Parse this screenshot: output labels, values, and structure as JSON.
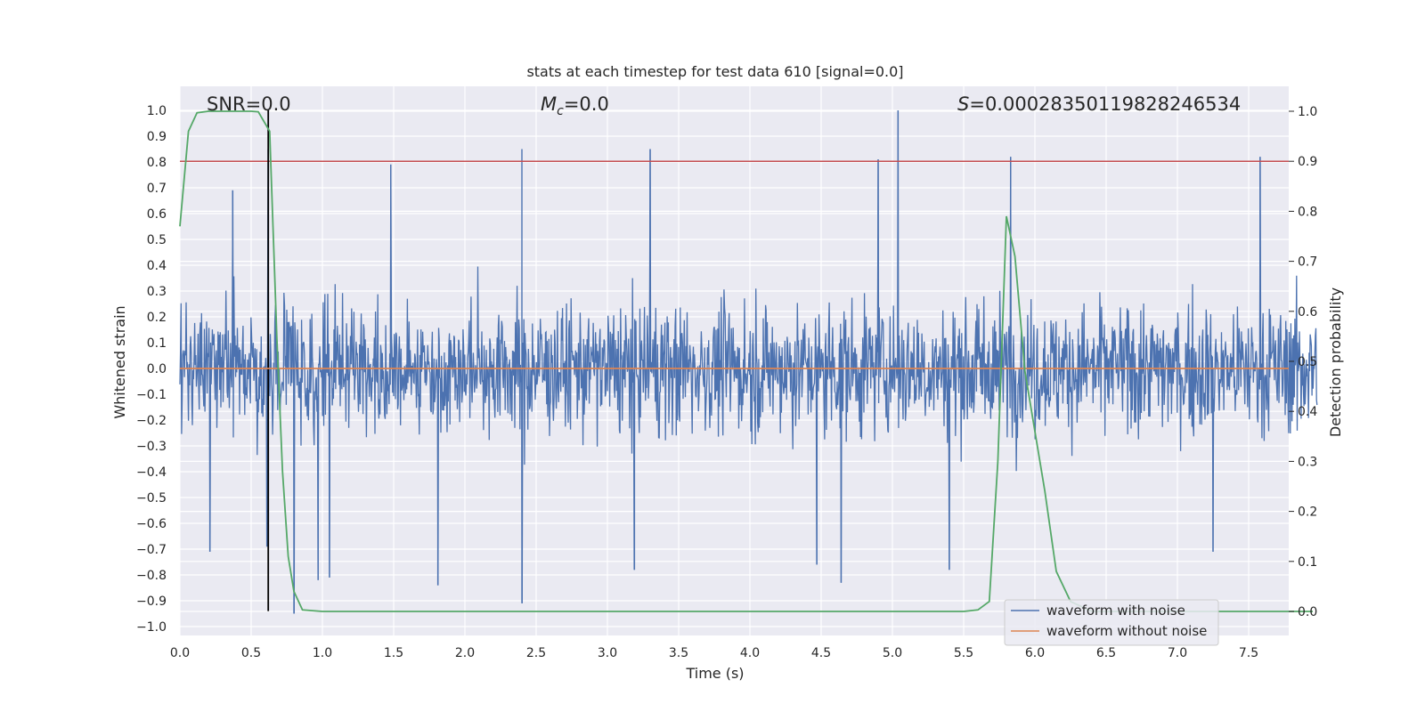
{
  "chart_data": {
    "type": "line",
    "title": "stats at each timestep for test data 610 [signal=0.0]",
    "xlabel": "Time (s)",
    "ylabel": "Whitened strain",
    "y2label": "Detection probability",
    "xlim": [
      0.0,
      8.0
    ],
    "ylim": [
      -1.04,
      1.09
    ],
    "y2lim": [
      -0.048,
      1.05
    ],
    "xticks": [
      "0.0",
      "0.5",
      "1.0",
      "1.5",
      "2.0",
      "2.5",
      "3.0",
      "3.5",
      "4.0",
      "4.5",
      "5.0",
      "5.5",
      "6.0",
      "6.5",
      "7.0",
      "7.5"
    ],
    "yticks": [
      "1.0",
      "0.9",
      "0.8",
      "0.7",
      "0.6",
      "0.5",
      "0.4",
      "0.3",
      "0.2",
      "0.1",
      "0.0",
      "-0.1",
      "-0.2",
      "-0.3",
      "-0.4",
      "-0.5",
      "-0.6",
      "-0.7",
      "-0.8",
      "-0.9",
      "-1.0"
    ],
    "y2ticks": [
      "1.0",
      "0.9",
      "0.8",
      "0.7",
      "0.6",
      "0.5",
      "0.4",
      "0.3",
      "0.2",
      "0.1",
      "0.0"
    ],
    "grid": true,
    "legend_placement": "lower-right",
    "annotations": {
      "snr": "SNR=0.0",
      "mc_symbol": "M",
      "mc_subscript": "c",
      "mc_value": "=0.0",
      "s_symbol": "S",
      "s_value": "=0.0002835011982824653​4"
    },
    "series": [
      {
        "name": "waveform with noise",
        "axis": "left",
        "color": "#4c72b0",
        "description_note": "dense noise band, typical envelope about -0.45 to 0.45",
        "peaks": [
          {
            "x": 0.37,
            "y": 0.69
          },
          {
            "x": 0.62,
            "y": 0.85
          },
          {
            "x": 2.4,
            "y": 0.85
          },
          {
            "x": 3.3,
            "y": 0.85
          },
          {
            "x": 4.9,
            "y": 0.81
          },
          {
            "x": 5.04,
            "y": 1.0
          },
          {
            "x": 5.83,
            "y": 0.82
          },
          {
            "x": 7.58,
            "y": 0.82
          },
          {
            "x": 1.48,
            "y": 0.79
          }
        ],
        "troughs": [
          {
            "x": 0.21,
            "y": -0.71
          },
          {
            "x": 0.61,
            "y": -0.69
          },
          {
            "x": 0.8,
            "y": -0.95
          },
          {
            "x": 0.97,
            "y": -0.82
          },
          {
            "x": 1.05,
            "y": -0.81
          },
          {
            "x": 1.81,
            "y": -0.84
          },
          {
            "x": 2.4,
            "y": -0.91
          },
          {
            "x": 3.19,
            "y": -0.78
          },
          {
            "x": 4.47,
            "y": -0.76
          },
          {
            "x": 4.64,
            "y": -0.83
          },
          {
            "x": 5.4,
            "y": -0.78
          },
          {
            "x": 7.25,
            "y": -0.71
          }
        ]
      },
      {
        "name": "waveform without noise",
        "axis": "left",
        "color": "#dd8452",
        "x": [
          0.0,
          8.0
        ],
        "y": [
          0.0,
          0.0
        ]
      },
      {
        "name": "",
        "axis": "right",
        "color": "#55a868",
        "x": [
          0.0,
          0.06,
          0.12,
          0.2,
          0.3,
          0.4,
          0.5,
          0.55,
          0.63,
          0.68,
          0.72,
          0.76,
          0.8,
          0.86,
          1.0,
          2.0,
          3.0,
          4.0,
          5.0,
          5.5,
          5.6,
          5.68,
          5.74,
          5.8,
          5.86,
          5.93,
          6.0,
          6.07,
          6.15,
          6.25,
          6.4,
          7.0,
          7.95
        ],
        "y": [
          0.77,
          0.96,
          0.997,
          1.0,
          1.0,
          1.0,
          1.0,
          0.999,
          0.96,
          0.55,
          0.28,
          0.11,
          0.04,
          0.003,
          0.0,
          0.0,
          0.0,
          0.0,
          0.0,
          0.0,
          0.003,
          0.02,
          0.3,
          0.79,
          0.71,
          0.48,
          0.36,
          0.24,
          0.08,
          0.02,
          0.0,
          0.0,
          0.0
        ]
      }
    ],
    "reference_lines": [
      {
        "axis": "right",
        "orientation": "horizontal",
        "value": 0.9,
        "color": "#c44e52"
      },
      {
        "axis": "left",
        "orientation": "vertical",
        "value": 0.62,
        "color": "#000000",
        "ymin": -0.94,
        "ymax": 1.0
      }
    ],
    "legend": [
      {
        "label": "waveform with noise",
        "color": "#4c72b0"
      },
      {
        "label": "waveform without noise",
        "color": "#dd8452"
      }
    ]
  }
}
